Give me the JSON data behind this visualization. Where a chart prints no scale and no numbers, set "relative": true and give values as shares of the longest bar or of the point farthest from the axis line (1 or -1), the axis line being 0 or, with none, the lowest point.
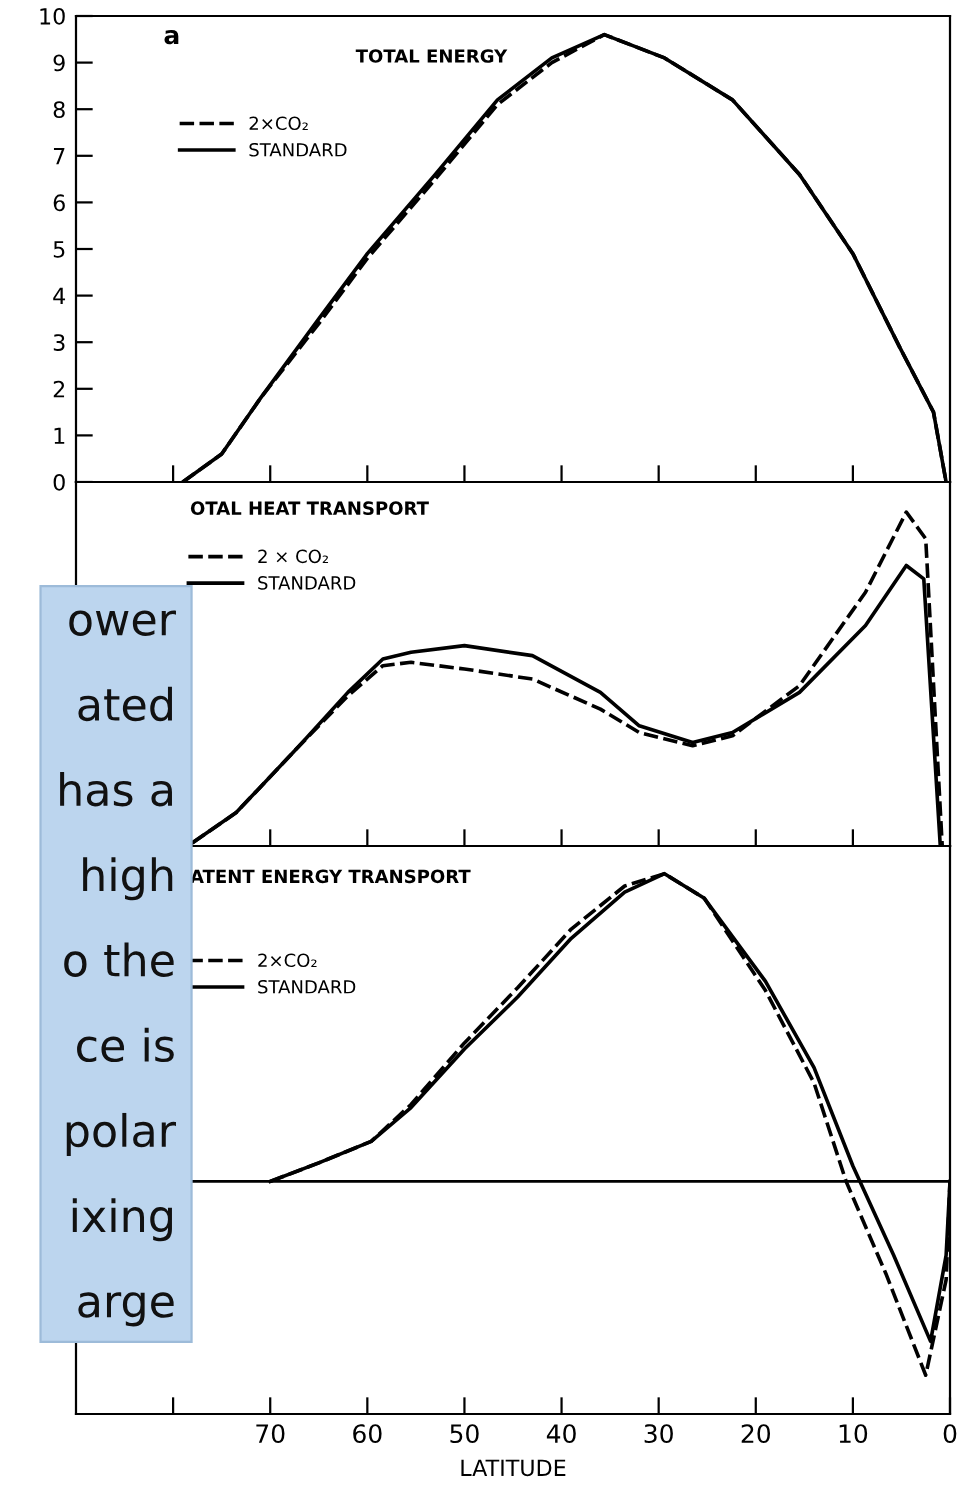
{
  "chart_data": [
    {
      "type": "line",
      "title": "TOTAL ENERGY",
      "annotations": [
        "a"
      ],
      "xlim": [
        90,
        0
      ],
      "ylim": [
        0,
        10
      ],
      "yticks": [
        0,
        1,
        2,
        3,
        4,
        5,
        6,
        7,
        8,
        9,
        10
      ],
      "xticks": [
        {
          "value": 80,
          "label": null
        },
        {
          "value": 70,
          "label": null
        },
        {
          "value": 60,
          "label": null
        },
        {
          "value": 50,
          "label": null
        },
        {
          "value": 40,
          "label": null
        },
        {
          "value": 30,
          "label": null
        },
        {
          "value": 20,
          "label": null
        },
        {
          "value": 10,
          "label": null
        }
      ],
      "tick_labels": "y",
      "legend": "top left",
      "grid": false,
      "series": [
        {
          "name": "2×CO₂",
          "color": "#000000",
          "line_style": "dashed",
          "x": [
            79,
            75,
            71,
            65,
            60,
            53,
            46.6,
            41,
            35.6,
            29.4,
            22.4,
            15.5,
            10,
            5.2,
            1.7,
            0.4
          ],
          "values": [
            0,
            0.6,
            1.8,
            3.4,
            4.8,
            6.5,
            8.1,
            9.0,
            9.6,
            9.1,
            8.2,
            6.6,
            4.9,
            2.9,
            1.5,
            0
          ]
        },
        {
          "name": "STANDARD",
          "color": "#000000",
          "line_style": "solid",
          "x": [
            79,
            75,
            71,
            65,
            60,
            53,
            46.6,
            41,
            35.6,
            29.4,
            22.4,
            15.5,
            10,
            5.2,
            1.7,
            0.4
          ],
          "values": [
            0,
            0.6,
            1.8,
            3.5,
            4.9,
            6.6,
            8.2,
            9.1,
            9.6,
            9.1,
            8.2,
            6.6,
            4.9,
            2.9,
            1.5,
            0
          ]
        }
      ]
    },
    {
      "type": "line",
      "title": "OTAL HEAT TRANSPORT",
      "relative": true,
      "xlim": [
        90,
        0
      ],
      "xticks": [
        {
          "value": 80,
          "label": null
        },
        {
          "value": 70,
          "label": null
        },
        {
          "value": 60,
          "label": null
        },
        {
          "value": 50,
          "label": null
        },
        {
          "value": 40,
          "label": null
        },
        {
          "value": 30,
          "label": null
        },
        {
          "value": 20,
          "label": null
        },
        {
          "value": 10,
          "label": null
        }
      ],
      "tick_labels": false,
      "legend": "top left",
      "annotations": [
        "ower",
        "ated",
        "has a",
        "high",
        "o the",
        "ce is",
        "polar",
        "ixing",
        "arge"
      ],
      "series": [
        {
          "name": "2 × CO₂",
          "color": "#000000",
          "line_style": "dashed",
          "x": [
            78,
            73.5,
            67,
            62,
            58.4,
            55.5,
            50,
            43,
            36,
            32,
            26.5,
            22.4,
            15.5,
            8.7,
            4.5,
            2.5,
            0.8
          ],
          "values": [
            0.01,
            0.1,
            0.3,
            0.45,
            0.54,
            0.55,
            0.53,
            0.5,
            0.41,
            0.34,
            0.3,
            0.33,
            0.48,
            0.76,
            1.0,
            0.92,
            0
          ]
        },
        {
          "name": "STANDARD",
          "color": "#000000",
          "line_style": "solid",
          "x": [
            78,
            73.5,
            67,
            62,
            58.4,
            55.5,
            50,
            43,
            36,
            32,
            26.5,
            22.4,
            15.5,
            8.7,
            4.5,
            2.7,
            1
          ],
          "values": [
            0.01,
            0.1,
            0.3,
            0.46,
            0.56,
            0.58,
            0.6,
            0.57,
            0.46,
            0.36,
            0.31,
            0.34,
            0.46,
            0.66,
            0.84,
            0.8,
            0
          ]
        }
      ]
    },
    {
      "type": "line",
      "title": "ATENT ENERGY TRANSPORT",
      "relative": true,
      "xlabel": "LATITUDE",
      "xlim": [
        90,
        0
      ],
      "xticks": [
        {
          "value": 80,
          "label": null
        },
        70,
        60,
        50,
        40,
        30,
        20,
        10,
        0
      ],
      "tick_labels": "x",
      "legend": "top left",
      "series": [
        {
          "name": "2×CO₂",
          "color": "#000000",
          "line_style": "dashed",
          "x": [
            70,
            65,
            59.6,
            55.5,
            50,
            44.5,
            39,
            33.5,
            29.4,
            25.3,
            19,
            14,
            10.7,
            6.6,
            2.5,
            0.4,
            0
          ],
          "values": [
            0,
            0.06,
            0.13,
            0.25,
            0.45,
            0.63,
            0.82,
            0.96,
            1.0,
            0.92,
            0.62,
            0.32,
            0,
            -0.3,
            -0.63,
            -0.32,
            0
          ]
        },
        {
          "name": "STANDARD",
          "color": "#000000",
          "line_style": "solid",
          "x": [
            70,
            65,
            59.6,
            55.5,
            50,
            44.5,
            39,
            33.5,
            29.4,
            25.3,
            19,
            14,
            10,
            5.8,
            2,
            0.4,
            0
          ],
          "values": [
            0,
            0.06,
            0.13,
            0.24,
            0.43,
            0.6,
            0.79,
            0.94,
            1.0,
            0.92,
            0.65,
            0.37,
            0.05,
            -0.24,
            -0.52,
            -0.24,
            0
          ]
        }
      ]
    }
  ]
}
